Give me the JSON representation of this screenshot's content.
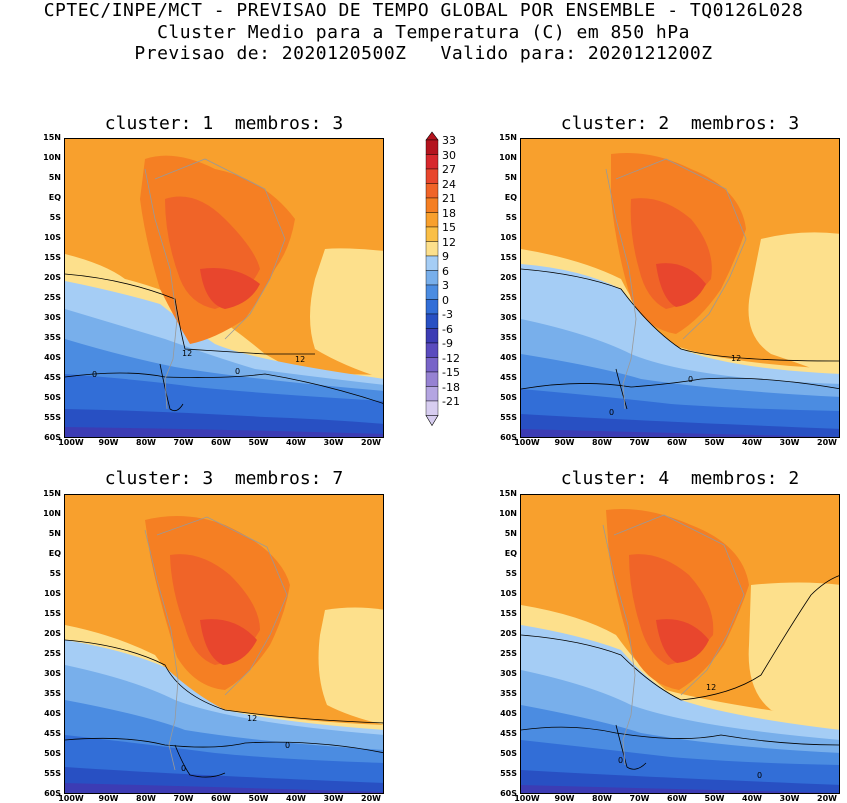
{
  "header": {
    "line1": "CPTEC/INPE/MCT - PREVISAO DE TEMPO GLOBAL POR ENSEMBLE - TQ0126L028",
    "line2": "Cluster Medio para a Temperatura (C) em 850 hPa",
    "line3": "Previsao de: 2020120500Z   Valido para: 2020121200Z"
  },
  "panels": [
    {
      "title": "cluster: 1  membros: 3",
      "contour_labels": [
        "12",
        "12",
        "0",
        "0"
      ]
    },
    {
      "title": "cluster: 2  membros: 3",
      "contour_labels": [
        "12",
        "0",
        "0"
      ]
    },
    {
      "title": "cluster: 3  membros: 7",
      "contour_labels": [
        "12",
        "0",
        "0"
      ]
    },
    {
      "title": "cluster: 4  membros: 2",
      "contour_labels": [
        "12",
        "0",
        "0"
      ]
    }
  ],
  "lat_labels": [
    "15N",
    "10N",
    "5N",
    "EQ",
    "5S",
    "10S",
    "15S",
    "20S",
    "25S",
    "30S",
    "35S",
    "40S",
    "45S",
    "50S",
    "55S",
    "60S"
  ],
  "lon_labels": [
    "100W",
    "90W",
    "80W",
    "70W",
    "60W",
    "50W",
    "40W",
    "30W",
    "20W"
  ],
  "colorbar": {
    "levels": [
      "33",
      "30",
      "27",
      "24",
      "21",
      "18",
      "15",
      "12",
      "9",
      "6",
      "3",
      "0",
      "-3",
      "-6",
      "-9",
      "-12",
      "-15",
      "-18",
      "-21"
    ],
    "colors": [
      "#b4141e",
      "#d7282d",
      "#e8462d",
      "#f06428",
      "#f57f23",
      "#f8a02d",
      "#fabf46",
      "#fde08c",
      "#a5cdf5",
      "#78afeb",
      "#4b8ce1",
      "#326ed7",
      "#2850c3",
      "#3c3cb4",
      "#5a4bbe",
      "#7864c8",
      "#9682d2",
      "#b4a5e1",
      "#d7cdf0"
    ]
  }
}
